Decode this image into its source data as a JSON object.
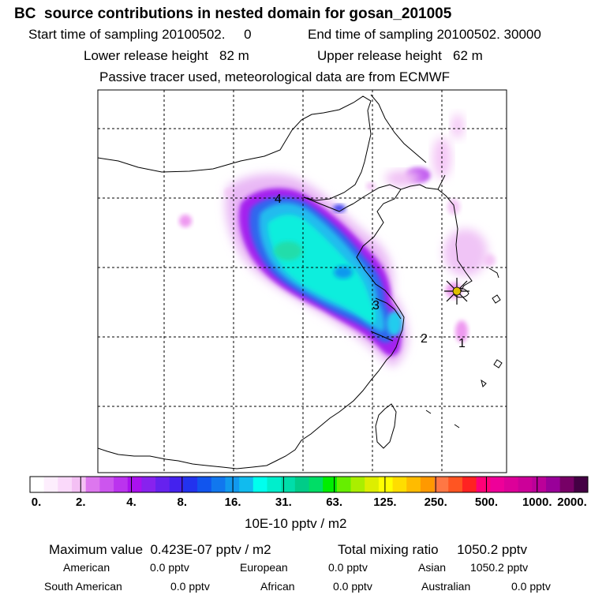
{
  "header": {
    "title": "BC  source contributions in nested domain for gosan_201005",
    "start_label": "Start time of sampling 20100502.     0",
    "end_label": "End time of sampling 20100502. 30000",
    "lower_label": "Lower release height   82 m",
    "upper_label": "Upper release height   62 m",
    "tracer_note": "Passive tracer used, meteorological data are from ECMWF"
  },
  "map": {
    "release_labels": [
      "1",
      "2",
      "3",
      "4"
    ],
    "receptor_color": "#e0c000"
  },
  "colorbar": {
    "tick_labels": [
      "0.",
      "2.",
      "4.",
      "8.",
      "16.",
      "31.",
      "63.",
      "125.",
      "250.",
      "500.",
      "1000.",
      "2000."
    ],
    "colors": [
      "#ffffff",
      "#fdeefd",
      "#fad9fa",
      "#f4c0f4",
      "#dd77ee",
      "#cc55ee",
      "#bb33ee",
      "#aa11ee",
      "#8822ee",
      "#6622ee",
      "#4422ee",
      "#2233ee",
      "#1155ee",
      "#1177ee",
      "#1199ee",
      "#11bbee",
      "#00ffee",
      "#00eecc",
      "#00ddaa",
      "#00cc88",
      "#00dd66",
      "#00ee00",
      "#66ee00",
      "#aaee00",
      "#ddee00",
      "#ffff00",
      "#ffdd00",
      "#ffbb00",
      "#ff9900",
      "#ff7744",
      "#ff5522",
      "#ff2222",
      "#ff0077",
      "#ee0099",
      "#dd0099",
      "#cc0099",
      "#bb0099",
      "#990099",
      "#770066",
      "#440044"
    ],
    "units": "10E-10 pptv / m2"
  },
  "stats": {
    "max_label": "Maximum value  0.423E-07 pptv / m2",
    "total_label": "Total mixing ratio     1050.2 pptv"
  },
  "regions": [
    {
      "name": "American",
      "value": "0.0 pptv"
    },
    {
      "name": "European",
      "value": "0.0 pptv"
    },
    {
      "name": "Asian",
      "value": "1050.2 pptv"
    },
    {
      "name": "South American",
      "value": "0.0 pptv"
    },
    {
      "name": "African",
      "value": "0.0 pptv"
    },
    {
      "name": "Australian",
      "value": "0.0 pptv"
    }
  ]
}
